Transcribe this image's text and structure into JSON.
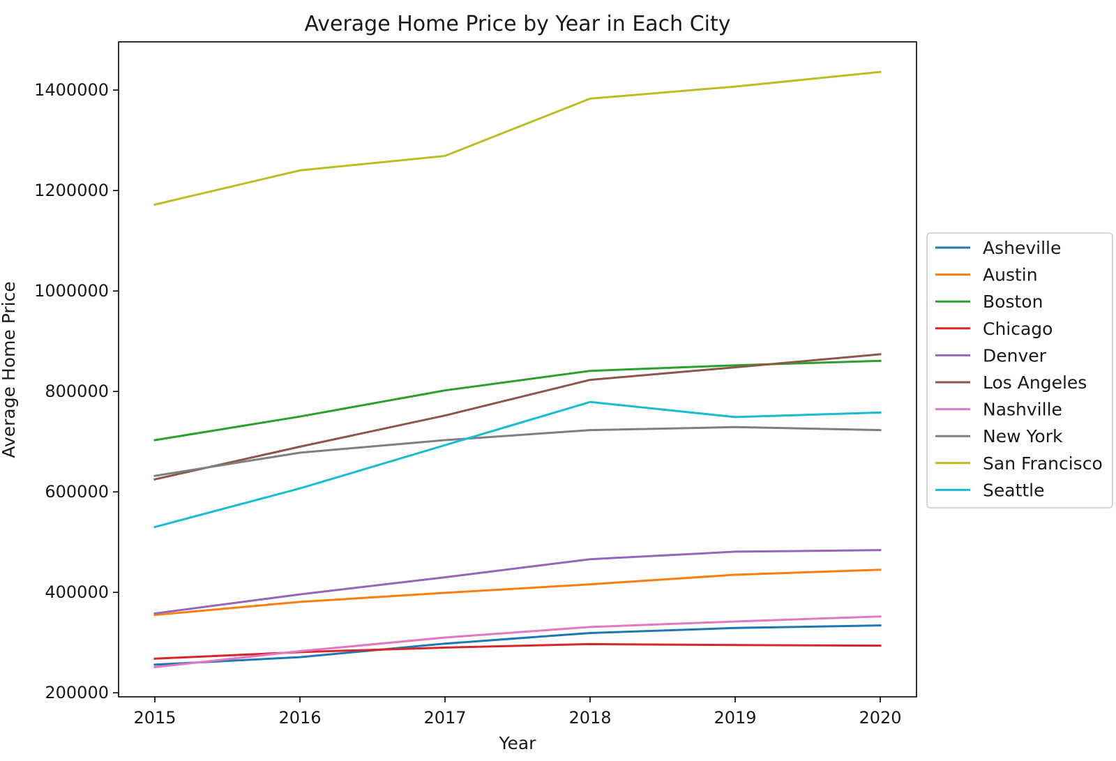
{
  "chart_data": {
    "type": "line",
    "title": "Average Home Price by Year in Each City",
    "xlabel": "Year",
    "ylabel": "Average Home Price",
    "x": [
      2015,
      2016,
      2017,
      2018,
      2019,
      2020
    ],
    "xlim": [
      2014.75,
      2020.25
    ],
    "ylim": [
      192000,
      1496000
    ],
    "yticks": [
      200000,
      400000,
      600000,
      800000,
      1000000,
      1200000,
      1400000
    ],
    "grid": false,
    "legend_position": "right",
    "series": [
      {
        "name": "Asheville",
        "color": "#1f77b4",
        "values": [
          256000,
          271000,
          298000,
          319000,
          329000,
          334000
        ]
      },
      {
        "name": "Austin",
        "color": "#ff7f0e",
        "values": [
          355000,
          381000,
          399000,
          416000,
          435000,
          445000
        ]
      },
      {
        "name": "Boston",
        "color": "#2ca02c",
        "values": [
          703000,
          750000,
          802000,
          841000,
          852000,
          861000
        ]
      },
      {
        "name": "Chicago",
        "color": "#d62728",
        "values": [
          268000,
          281000,
          290000,
          297000,
          295000,
          294000
        ]
      },
      {
        "name": "Denver",
        "color": "#9467bd",
        "values": [
          358000,
          396000,
          430000,
          466000,
          481000,
          484000
        ]
      },
      {
        "name": "Los Angeles",
        "color": "#8c564b",
        "values": [
          625000,
          690000,
          752000,
          823000,
          848000,
          874000
        ]
      },
      {
        "name": "Nashville",
        "color": "#e377c2",
        "values": [
          251000,
          283000,
          310000,
          331000,
          342000,
          352000
        ]
      },
      {
        "name": "New York",
        "color": "#7f7f7f",
        "values": [
          632000,
          678000,
          703000,
          723000,
          729000,
          723000
        ]
      },
      {
        "name": "San Francisco",
        "color": "#bcbd22",
        "values": [
          1172000,
          1240000,
          1269000,
          1383000,
          1407000,
          1436000
        ]
      },
      {
        "name": "Seattle",
        "color": "#17becf",
        "values": [
          530000,
          607000,
          693000,
          779000,
          749000,
          758000
        ]
      }
    ]
  }
}
